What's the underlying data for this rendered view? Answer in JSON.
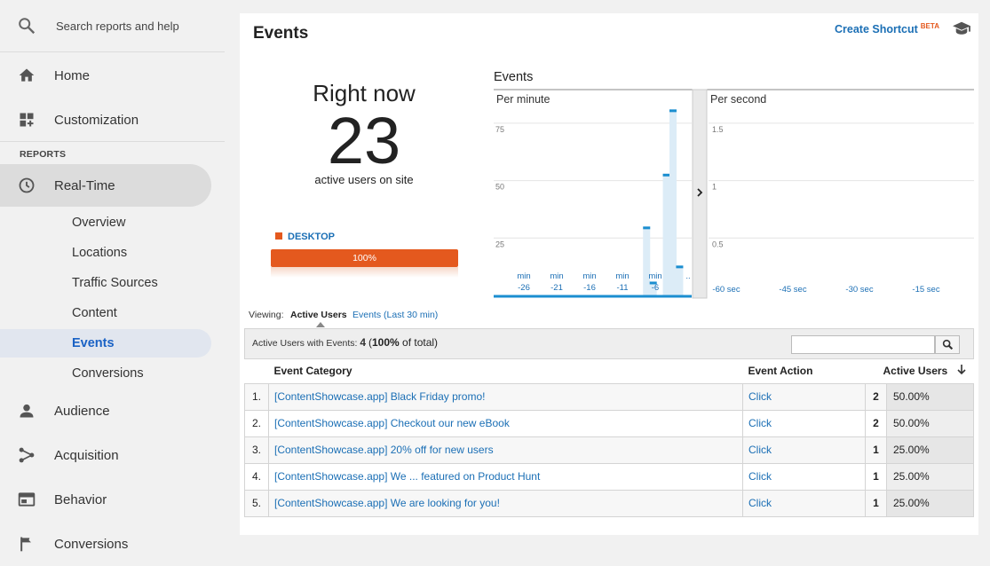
{
  "search": {
    "placeholder": "Search reports and help",
    "icon": "search-icon"
  },
  "nav": {
    "home": "Home",
    "customization": "Customization",
    "reports_label": "REPORTS",
    "realtime": "Real-Time",
    "realtime_items": [
      "Overview",
      "Locations",
      "Traffic Sources",
      "Content",
      "Events",
      "Conversions"
    ],
    "audience": "Audience",
    "acquisition": "Acquisition",
    "behavior": "Behavior",
    "conversions": "Conversions"
  },
  "header": {
    "title": "Events",
    "shortcut": "Create Shortcut",
    "beta": "BETA"
  },
  "right_now": {
    "label": "Right now",
    "count": "23",
    "sub": "active users on site",
    "device": "DESKTOP",
    "device_pct": "100%",
    "device_fraction": 1.0,
    "device_color": "#e4591e"
  },
  "chart_data": [
    {
      "type": "bar",
      "title": "Events",
      "panel": "Per minute",
      "ylim": [
        0,
        85
      ],
      "yticks": [
        25,
        50,
        75
      ],
      "xtick_labels": [
        "min -26",
        "min -21",
        "min -16",
        "min -11",
        "min -6",
        ".."
      ],
      "x": [
        -29,
        -28,
        -27,
        -26,
        -25,
        -24,
        -23,
        -22,
        -21,
        -20,
        -19,
        -18,
        -17,
        -16,
        -15,
        -14,
        -13,
        -12,
        -11,
        -10,
        -9,
        -8,
        -7,
        -6,
        -5,
        -4,
        -3,
        -2,
        -1
      ],
      "values": [
        0,
        0,
        0,
        0,
        0,
        0,
        0,
        0,
        0,
        0,
        0,
        0,
        0,
        0,
        0,
        0,
        0,
        0,
        0,
        0,
        0,
        0,
        30,
        6,
        0,
        53,
        81,
        13,
        0
      ]
    },
    {
      "type": "bar",
      "panel": "Per second",
      "ylim": [
        0,
        1.7
      ],
      "yticks": [
        0.5,
        1,
        1.5
      ],
      "xtick_labels": [
        "-60 sec",
        "-45 sec",
        "-30 sec",
        "-15 sec"
      ],
      "values": []
    }
  ],
  "viewing": {
    "label": "Viewing:",
    "active": "Active Users",
    "alt": "Events (Last 30 min)"
  },
  "table_bar": {
    "label": "Active Users with Events:",
    "count": "4",
    "pct": "100%",
    "suffix": "of total)"
  },
  "table": {
    "columns": [
      "Event Category",
      "Event Action",
      "Active Users"
    ],
    "rows": [
      {
        "n": "1.",
        "category": "[ContentShowcase.app] Black Friday promo!",
        "action": "Click",
        "users": "2",
        "pct": "50.00%"
      },
      {
        "n": "2.",
        "category": "[ContentShowcase.app] Checkout our new eBook",
        "action": "Click",
        "users": "2",
        "pct": "50.00%"
      },
      {
        "n": "3.",
        "category": "[ContentShowcase.app] 20% off for new users",
        "action": "Click",
        "users": "1",
        "pct": "25.00%"
      },
      {
        "n": "4.",
        "category": "[ContentShowcase.app] We ... featured on Product Hunt",
        "action": "Click",
        "users": "1",
        "pct": "25.00%"
      },
      {
        "n": "5.",
        "category": "[ContentShowcase.app] We are looking for you!",
        "action": "Click",
        "users": "1",
        "pct": "25.00%"
      }
    ]
  }
}
